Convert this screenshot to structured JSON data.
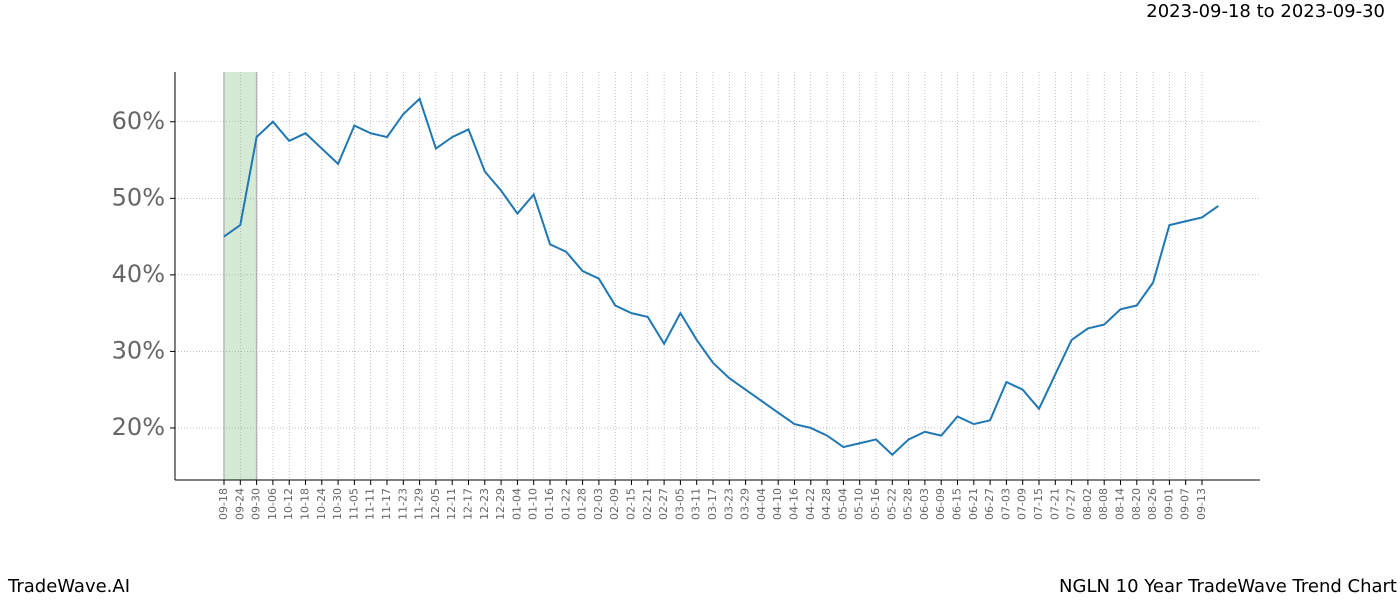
{
  "header": "2023-09-18 to 2023-09-30",
  "footer_left": "TradeWave.AI",
  "footer_right": "NGLN 10 Year TradeWave Trend Chart",
  "chart_data": {
    "type": "line",
    "categories": [
      "09-18",
      "09-24",
      "09-30",
      "10-06",
      "10-12",
      "10-18",
      "10-24",
      "10-30",
      "11-05",
      "11-11",
      "11-17",
      "11-23",
      "11-29",
      "12-05",
      "12-11",
      "12-17",
      "12-23",
      "12-29",
      "01-04",
      "01-10",
      "01-16",
      "01-22",
      "01-28",
      "02-03",
      "02-09",
      "02-15",
      "02-21",
      "02-27",
      "03-05",
      "03-11",
      "03-17",
      "03-23",
      "03-29",
      "04-04",
      "04-10",
      "04-16",
      "04-22",
      "04-28",
      "05-04",
      "05-10",
      "05-16",
      "05-22",
      "05-28",
      "06-03",
      "06-09",
      "06-15",
      "06-21",
      "06-27",
      "07-03",
      "07-09",
      "07-15",
      "07-21",
      "07-27",
      "08-02",
      "08-08",
      "08-14",
      "08-20",
      "08-26",
      "09-01",
      "09-07",
      "09-13",
      null
    ],
    "values": [
      45,
      46.5,
      58,
      60,
      57.5,
      58.5,
      56.5,
      54.5,
      59.5,
      58.5,
      58,
      61,
      63,
      56.5,
      58,
      59,
      53.5,
      51,
      48,
      50.5,
      44,
      43,
      40.5,
      39.5,
      36,
      35,
      34.5,
      31,
      35,
      31.5,
      28.5,
      26.5,
      25,
      23.5,
      22,
      20.5,
      20,
      19,
      17.5,
      18,
      18.5,
      16.5,
      18.5,
      19.5,
      19,
      21.5,
      20.5,
      21,
      26,
      25,
      22.5,
      27,
      31.5,
      33,
      33.5,
      35.5,
      36,
      39,
      46.5,
      47,
      47.5,
      49
    ],
    "color": "#1f77b4",
    "highlight": [
      "09-18",
      "09-30"
    ],
    "highlight_color": "#d5ead5",
    "ylim": [
      13.2,
      66.5
    ],
    "yticks": [
      {
        "value": 20,
        "label": "20%"
      },
      {
        "value": 30,
        "label": "30%"
      },
      {
        "value": 40,
        "label": "40%"
      },
      {
        "value": 50,
        "label": "50%"
      },
      {
        "value": 60,
        "label": "60%"
      }
    ],
    "grid": true
  }
}
